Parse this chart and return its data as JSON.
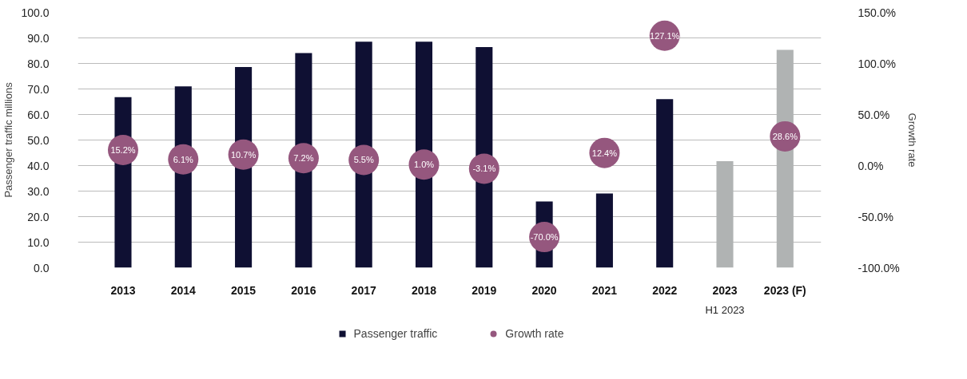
{
  "chart_data": {
    "type": "bar",
    "ylabel": "Passenger traffic millions",
    "y2label": "Growth rate",
    "categories": [
      "2013",
      "2014",
      "2015",
      "2016",
      "2017",
      "2018",
      "2019",
      "2020",
      "2021",
      "2022",
      "2023",
      "2023 (F)"
    ],
    "series": [
      {
        "name": "Passenger traffic",
        "color": "#0f1033",
        "colors": [
          "#0f1033",
          "#0f1033",
          "#0f1033",
          "#0f1033",
          "#0f1033",
          "#0f1033",
          "#0f1033",
          "#0f1033",
          "#0f1033",
          "#0f1033",
          "#b0b3b3",
          "#b0b3b3"
        ],
        "values": [
          66.8,
          71.0,
          78.6,
          84.1,
          88.5,
          88.5,
          86.4,
          25.9,
          29.1,
          66.0,
          41.7,
          85.3
        ]
      },
      {
        "name": "Growth rate",
        "type": "scatter",
        "axis": "y2",
        "marker": "circle",
        "color": "#95577e",
        "values": [
          15.2,
          6.1,
          10.7,
          7.2,
          5.5,
          1.0,
          -3.1,
          -70.0,
          12.4,
          127.1,
          null,
          28.6
        ],
        "value_labels": [
          "15.2%",
          "6.1%",
          "10.7%",
          "7.2%",
          "5.5%",
          "1.0%",
          "-3.1%",
          "-70.0%",
          "12.4%",
          "127.1%",
          null,
          "28.6%"
        ]
      }
    ],
    "ylim": [
      0,
      100
    ],
    "yticks": [
      {
        "value": 0,
        "label": "0.0"
      },
      {
        "value": 10,
        "label": "10.0"
      },
      {
        "value": 20,
        "label": "20.0"
      },
      {
        "value": 30,
        "label": "30.0"
      },
      {
        "value": 40,
        "label": "40.0"
      },
      {
        "value": 50,
        "label": "50.0"
      },
      {
        "value": 60,
        "label": "60.0"
      },
      {
        "value": 70,
        "label": "70.0"
      },
      {
        "value": 80,
        "label": "80.0"
      },
      {
        "value": 90,
        "label": "90.0"
      },
      {
        "value": 100,
        "label": "100.0"
      }
    ],
    "y2lim": [
      -100,
      150
    ],
    "y2ticks": [
      {
        "value": -100,
        "label": "-100.0%"
      },
      {
        "value": -50,
        "label": "-50.0%"
      },
      {
        "value": 0,
        "label": "0.0%"
      },
      {
        "value": 50,
        "label": "50.0%"
      },
      {
        "value": 100,
        "label": "100.0%"
      },
      {
        "value": 150,
        "label": "150.0%"
      }
    ],
    "annotations": [
      "H1 2023"
    ],
    "grid": "y",
    "legend": "bottom"
  }
}
